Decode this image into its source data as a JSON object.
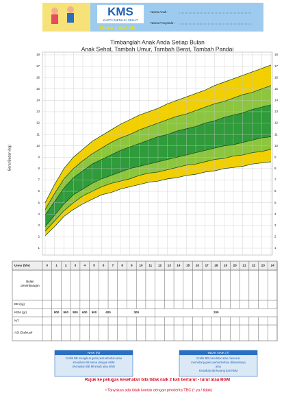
{
  "header": {
    "logo": "KMS",
    "logo_subtitle": "KARTU MENUJU SEHAT",
    "gender": "Untuk Laki-Laki",
    "fields": [
      "Nama Anak :",
      "Nama Posyandu :"
    ]
  },
  "chart_data": {
    "type": "area",
    "title": "Timbanglah Anak Anda Setiap Bulan",
    "subtitle": "Anak Sehat, Tambah Umur, Tambah Berat, Tambah Pandai",
    "y_label": "Berat Badan (kg)",
    "x": [
      0,
      1,
      2,
      3,
      4,
      5,
      6,
      7,
      8,
      9,
      10,
      11,
      12,
      13,
      14,
      15,
      16,
      17,
      18,
      19,
      20,
      21,
      22,
      23,
      24
    ],
    "xlim": [
      0,
      24
    ],
    "ylim": [
      1,
      18
    ],
    "yticks": [
      1,
      2,
      3,
      4,
      5,
      6,
      7,
      8,
      9,
      10,
      11,
      12,
      13,
      14,
      15,
      16,
      17,
      18
    ],
    "grid": true,
    "line_color": "#1f4f1f",
    "series": [
      {
        "color": "#f2cf00",
        "values": [
          5.0,
          6.6,
          8.0,
          9.0,
          9.7,
          10.4,
          10.9,
          11.4,
          11.9,
          12.3,
          12.7,
          13.0,
          13.3,
          13.7,
          14.0,
          14.3,
          14.6,
          14.9,
          15.3,
          15.6,
          15.9,
          16.2,
          16.5,
          16.8,
          17.1
        ]
      },
      {
        "color": "#8cc63e",
        "values": [
          4.4,
          5.8,
          7.1,
          8.0,
          8.7,
          9.3,
          9.8,
          10.3,
          10.7,
          11.0,
          11.4,
          11.7,
          12.0,
          12.3,
          12.6,
          12.8,
          13.1,
          13.4,
          13.7,
          13.9,
          14.2,
          14.5,
          14.7,
          15.0,
          15.3
        ]
      },
      {
        "color": "#2f9b3b",
        "values": [
          3.9,
          5.1,
          6.3,
          7.2,
          7.8,
          8.4,
          8.8,
          9.2,
          9.6,
          9.9,
          10.2,
          10.5,
          10.8,
          11.0,
          11.3,
          11.5,
          11.7,
          12.0,
          12.2,
          12.5,
          12.7,
          12.9,
          13.2,
          13.4,
          13.6
        ]
      },
      {
        "color": "#8cc63e",
        "values": [
          2.9,
          3.9,
          4.9,
          5.7,
          6.2,
          6.7,
          7.1,
          7.4,
          7.7,
          8.0,
          8.2,
          8.4,
          8.6,
          8.8,
          9.0,
          9.2,
          9.4,
          9.6,
          9.8,
          10.0,
          10.1,
          10.3,
          10.5,
          10.7,
          10.8
        ]
      },
      {
        "color": "#f2cf00",
        "values": [
          2.5,
          3.4,
          4.3,
          5.0,
          5.6,
          6.0,
          6.4,
          6.7,
          6.9,
          7.1,
          7.4,
          7.6,
          7.7,
          7.9,
          8.1,
          8.3,
          8.4,
          8.6,
          8.8,
          8.9,
          9.1,
          9.2,
          9.4,
          9.5,
          9.7
        ]
      },
      {
        "color": "#ffffff",
        "values": [
          2.1,
          2.9,
          3.8,
          4.4,
          4.9,
          5.3,
          5.7,
          5.9,
          6.2,
          6.4,
          6.6,
          6.8,
          6.9,
          7.1,
          7.2,
          7.4,
          7.5,
          7.7,
          7.8,
          8.0,
          8.1,
          8.2,
          8.4,
          8.5,
          8.6
        ]
      }
    ]
  },
  "table": {
    "row_labels": [
      "Umur (bln)",
      "Bulan penimbangan",
      "BB (kg)",
      "KBM (gr)",
      "N/T",
      "ASI Eksklusif"
    ],
    "kbm": [
      800,
      900,
      800,
      600,
      500,
      400,
      300,
      200
    ]
  },
  "legend_boxes": [
    {
      "title": "NAIK (N)",
      "lines": [
        "Grafik BB mengikuti garis pertumbuhan atau",
        "Kenaikan BB sama dengan KBM",
        "(Kenaikan BB Minimal) atau lebih"
      ]
    },
    {
      "title": "TIDAK NAIK (T)",
      "lines": [
        "Grafik BB mendatar atau menurun",
        "memotong garis pertumbuhan dibawahnya",
        "atau",
        "Kenaikan BB kurang dari KBM"
      ]
    }
  ],
  "footer": {
    "warning": "Rujuk ke petugas kesehatan bila tidak naik 2 kali berturut - turut atau BGM",
    "question": "•  Tanyakan ada tidak kontak dengan penderita TBC (* ya / tidak)"
  }
}
